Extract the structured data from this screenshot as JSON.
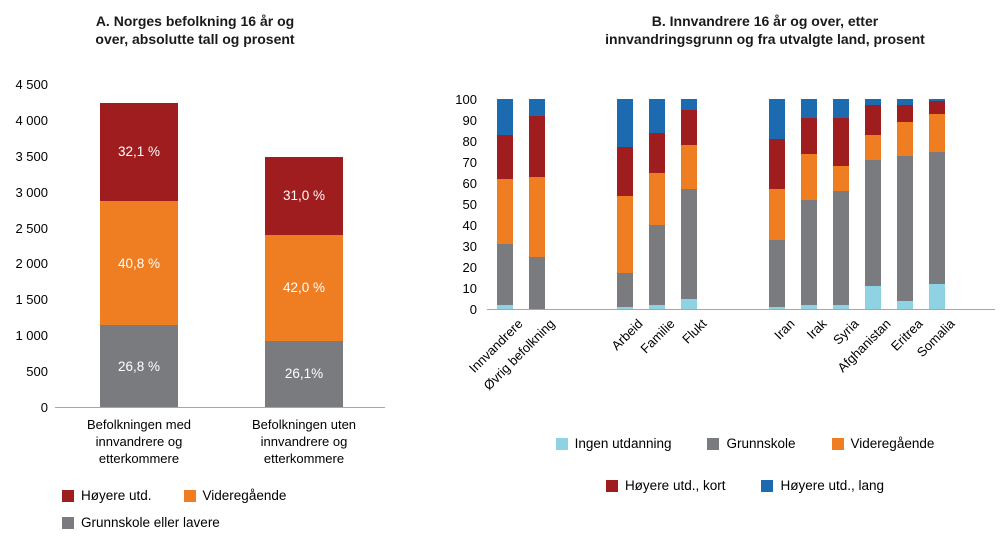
{
  "colors": {
    "ingen_utdanning": "#8fd2e4",
    "grunnskole": "#797b7e",
    "videregaende": "#ef7d22",
    "hoyere_kort": "#9f1c1f",
    "hoyere_lang": "#1c6bb0",
    "axis_line": "#a6a6a6",
    "text": "#1a1a1a",
    "segment_label_text": "#ffffff"
  },
  "chart_data": [
    {
      "type": "bar",
      "subtype": "stacked-column-absolute",
      "title_line1": "A. Norges befolkning 16 år og",
      "title_line2": "over, absolutte tall og prosent",
      "ylim": [
        0,
        4500
      ],
      "y_max": 4500,
      "grid": false,
      "y_tick_labels": [
        "4 500",
        "4 000",
        "3 500",
        "3 000",
        "2 500",
        "2 000",
        "1 500",
        "1 000",
        "500",
        "0"
      ],
      "bars": [
        {
          "label_lines": [
            "Befolkningen med",
            "innvandrere og",
            "etterkommere"
          ],
          "segments": [
            {
              "name": "Grunnskole eller lavere",
              "color_key": "grunnskole",
              "value": 1139,
              "pct_label": "26,8 %"
            },
            {
              "name": "Videregående",
              "color_key": "videregaende",
              "value": 1734,
              "pct_label": "40,8 %"
            },
            {
              "name": "Høyere utd.",
              "color_key": "hoyere_kort",
              "value": 1364,
              "pct_label": "32,1 %"
            }
          ]
        },
        {
          "label_lines": [
            "Befolkningen uten",
            "innvandrere og",
            "etterkommere"
          ],
          "segments": [
            {
              "name": "Grunnskole eller lavere",
              "color_key": "grunnskole",
              "value": 920,
              "pct_label": "26,1%"
            },
            {
              "name": "Videregående",
              "color_key": "videregaende",
              "value": 1480,
              "pct_label": "42,0 %"
            },
            {
              "name": "Høyere utd.",
              "color_key": "hoyere_kort",
              "value": 1090,
              "pct_label": "31,0 %"
            }
          ]
        }
      ],
      "legend_rows": [
        [
          {
            "label": "Høyere utd.",
            "color_key": "hoyere_kort"
          },
          {
            "label": "Videregående",
            "color_key": "videregaende"
          }
        ],
        [
          {
            "label": "Grunnskole eller lavere",
            "color_key": "grunnskole"
          }
        ]
      ]
    },
    {
      "type": "bar",
      "subtype": "stacked-column-100pct",
      "title_line1": "B. Innvandrere 16 år og over, etter",
      "title_line2": "innvandringsgrunn og fra utvalgte land, prosent",
      "ylim": [
        0,
        100
      ],
      "grid": false,
      "y_tick_labels": [
        "100",
        "90",
        "80",
        "70",
        "60",
        "50",
        "40",
        "30",
        "20",
        "10",
        "0"
      ],
      "categories": [
        "Innvandrere",
        "Øvrig befolkning",
        "Arbeid",
        "Familie",
        "Flukt",
        "Iran",
        "Irak",
        "Syria",
        "Afghanistan",
        "Eritrea",
        "Somalia"
      ],
      "group_start_indices": [
        2,
        5
      ],
      "series": [
        {
          "name": "Ingen utdanning",
          "color_key": "ingen_utdanning",
          "values": [
            2,
            0,
            1,
            2,
            5,
            1,
            2,
            2,
            11,
            4,
            12
          ]
        },
        {
          "name": "Grunnskole",
          "color_key": "grunnskole",
          "values": [
            29,
            25,
            16,
            38,
            52,
            32,
            50,
            54,
            60,
            69,
            63
          ]
        },
        {
          "name": "Videregående",
          "color_key": "videregaende",
          "values": [
            31,
            38,
            37,
            25,
            21,
            24,
            22,
            12,
            12,
            16,
            18
          ]
        },
        {
          "name": "Høyere utd., kort",
          "color_key": "hoyere_kort",
          "values": [
            21,
            29,
            23,
            19,
            17,
            24,
            17,
            23,
            14,
            8,
            6
          ]
        },
        {
          "name": "Høyere utd., lang",
          "color_key": "hoyere_lang",
          "values": [
            17,
            8,
            23,
            16,
            5,
            19,
            9,
            9,
            3,
            3,
            1
          ]
        }
      ],
      "legend_rows": [
        [
          {
            "label": "Ingen utdanning",
            "color_key": "ingen_utdanning"
          },
          {
            "label": "Grunnskole",
            "color_key": "grunnskole"
          },
          {
            "label": "Videregående",
            "color_key": "videregaende"
          }
        ],
        [
          {
            "label": "Høyere utd., kort",
            "color_key": "hoyere_kort"
          },
          {
            "label": "Høyere utd., lang",
            "color_key": "hoyere_lang"
          }
        ]
      ]
    }
  ]
}
